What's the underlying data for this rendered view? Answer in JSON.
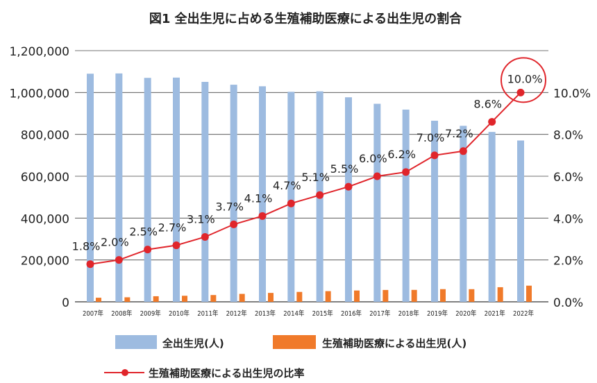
{
  "chart_data": {
    "type": "bar+line",
    "title": "図1 全出生児に占める生殖補助医療による出生児の割合",
    "categories": [
      "2007年",
      "2008年",
      "2009年",
      "2010年",
      "2011年",
      "2012年",
      "2013年",
      "2014年",
      "2015年",
      "2016年",
      "2017年",
      "2018年",
      "2019年",
      "2020年",
      "2021年",
      "2022年"
    ],
    "left_axis": {
      "range": [
        0,
        1200000
      ],
      "ticks": [
        "0",
        "200,000",
        "400,000",
        "600,000",
        "800,000",
        "1,000,000",
        "1,200,000"
      ]
    },
    "right_axis": {
      "range": [
        0,
        12
      ],
      "ticks": [
        "0.0%",
        "2.0%",
        "4.0%",
        "6.0%",
        "8.0%",
        "10.0%"
      ]
    },
    "grid": true,
    "series": [
      {
        "name": "全出生児(人)",
        "type": "bar",
        "color": "#9dbbe0",
        "values": [
          1089818,
          1091156,
          1070035,
          1071304,
          1050806,
          1037231,
          1029816,
          1003539,
          1005721,
          977242,
          946146,
          918400,
          865239,
          840835,
          811622,
          770759
        ]
      },
      {
        "name": "生殖補助医療による出生児(人)",
        "type": "bar",
        "color": "#f07a2a",
        "values": [
          19595,
          21704,
          26680,
          28945,
          32426,
          37953,
          42554,
          47322,
          51001,
          54110,
          56617,
          56979,
          60598,
          60381,
          69797,
          77206
        ]
      },
      {
        "name": "生殖補助医療による出生児の比率",
        "type": "line",
        "axis": "right",
        "color": "#e0252b",
        "values": [
          1.8,
          2.0,
          2.5,
          2.7,
          3.1,
          3.7,
          4.1,
          4.7,
          5.1,
          5.5,
          6.0,
          6.2,
          7.0,
          7.2,
          8.6,
          10.0
        ],
        "labels": [
          "1.8%",
          "2.0%",
          "2.5%",
          "2.7%",
          "3.1%",
          "3.7%",
          "4.1%",
          "4.7%",
          "5.1%",
          "5.5%",
          "6.0%",
          "6.2%",
          "7.0%",
          "7.2%",
          "8.6%",
          "10.0%"
        ]
      }
    ],
    "highlight": "10.0%",
    "legend_placement": "bottom"
  }
}
